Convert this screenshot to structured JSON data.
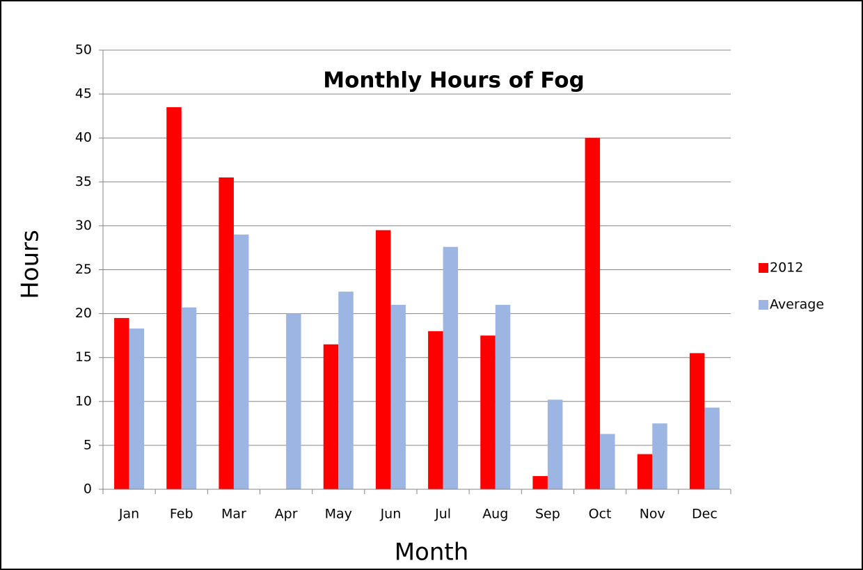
{
  "chart_data": {
    "type": "bar",
    "title": "Monthly Hours of Fog",
    "x_label": "Month",
    "y_label": "Hours",
    "categories": [
      "Jan",
      "Feb",
      "Mar",
      "Apr",
      "May",
      "Jun",
      "Jul",
      "Aug",
      "Sep",
      "Oct",
      "Nov",
      "Dec"
    ],
    "series": [
      {
        "name": "2012",
        "color": "#ff0000",
        "values": [
          19.5,
          43.5,
          35.5,
          0,
          16.5,
          29.5,
          18,
          17.5,
          1.5,
          40,
          4,
          15.5
        ]
      },
      {
        "name": "Average",
        "color": "#9db5e3",
        "values": [
          18.3,
          20.7,
          29,
          20,
          22.5,
          21,
          27.6,
          21,
          10.2,
          6.3,
          7.5,
          9.3
        ]
      }
    ],
    "ylim": [
      0,
      50
    ],
    "yticks": [
      0,
      5,
      10,
      15,
      20,
      25,
      30,
      35,
      40,
      45,
      50
    ],
    "grid": true,
    "legend": "right"
  }
}
